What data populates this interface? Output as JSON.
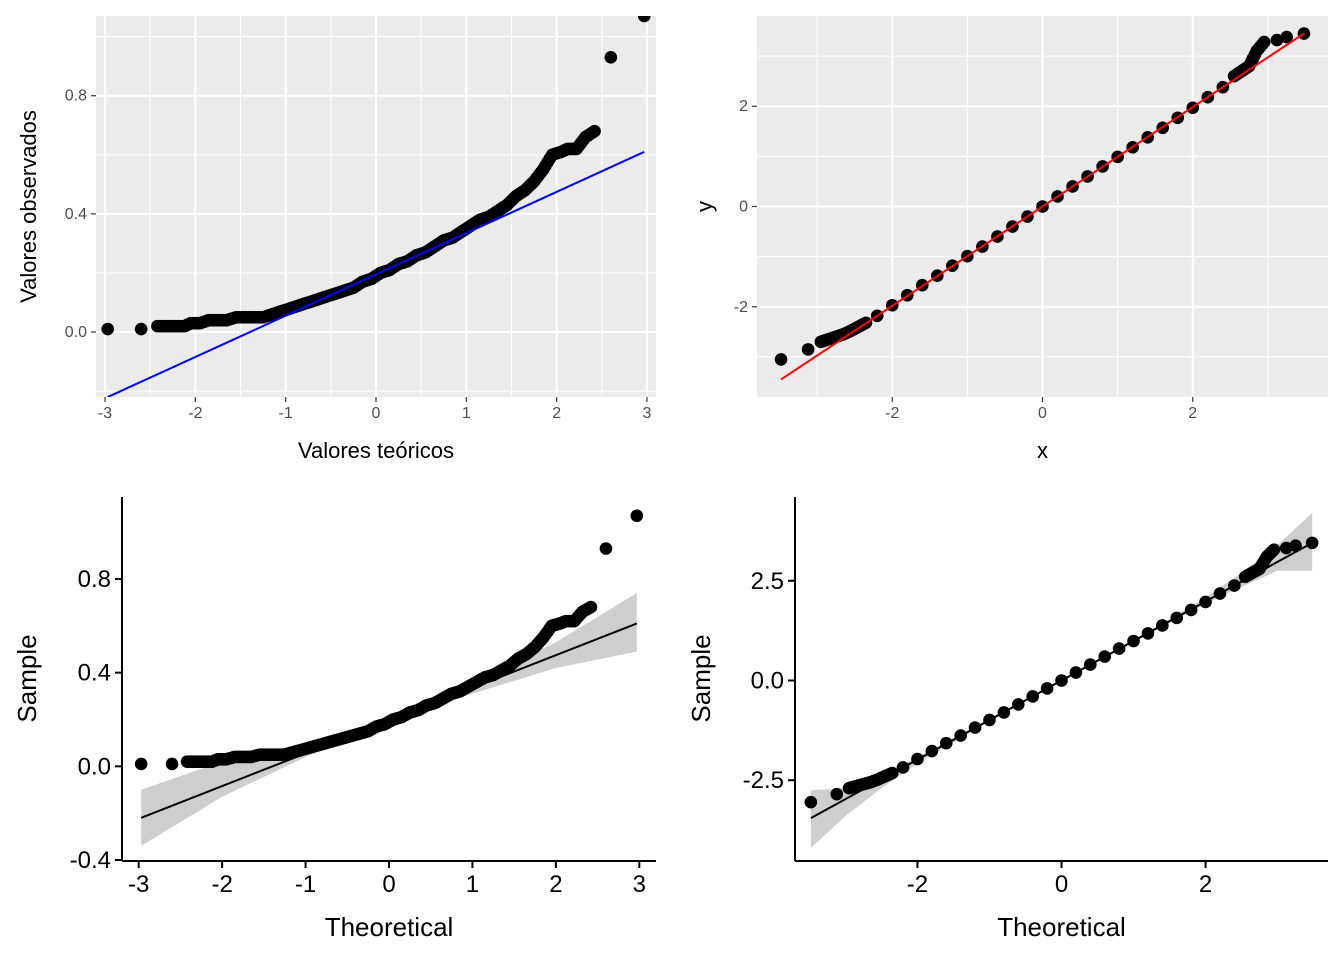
{
  "chart_data": [
    {
      "type": "scatter",
      "variant": "qq-plot",
      "theme": "ggplot2 grey",
      "xlabel": "Valores teóricos",
      "ylabel": "Valores observados",
      "xlim": [
        -3.1,
        3.1
      ],
      "ylim": [
        -0.22,
        1.07
      ],
      "xticks": [
        -3,
        -2,
        -1,
        0,
        1,
        2,
        3
      ],
      "xtick_labels": [
        "-3",
        "-2",
        "-1",
        "0",
        "1",
        "2",
        "3"
      ],
      "yticks": [
        0.0,
        0.4,
        0.8
      ],
      "ytick_labels": [
        "0.0",
        "0.4",
        "0.8"
      ],
      "grid": true,
      "series": [
        {
          "kind": "points",
          "color": "#000000",
          "x": [
            -2.97,
            -2.6,
            -2.42,
            -2.32,
            -2.22,
            -2.12,
            -2.05,
            -1.95,
            -1.85,
            -1.75,
            -1.65,
            -1.55,
            -1.45,
            -1.35,
            -1.25,
            -1.15,
            -1.05,
            -0.95,
            -0.85,
            -0.75,
            -0.65,
            -0.55,
            -0.45,
            -0.35,
            -0.25,
            -0.15,
            -0.05,
            0.05,
            0.15,
            0.25,
            0.35,
            0.45,
            0.55,
            0.65,
            0.75,
            0.85,
            0.95,
            1.05,
            1.15,
            1.25,
            1.35,
            1.45,
            1.55,
            1.65,
            1.75,
            1.85,
            1.95,
            2.05,
            2.12,
            2.22,
            2.32,
            2.42,
            2.6,
            2.97
          ],
          "y": [
            0.01,
            0.01,
            0.02,
            0.02,
            0.02,
            0.02,
            0.03,
            0.03,
            0.04,
            0.04,
            0.04,
            0.05,
            0.05,
            0.05,
            0.05,
            0.06,
            0.07,
            0.08,
            0.09,
            0.1,
            0.11,
            0.12,
            0.13,
            0.14,
            0.15,
            0.17,
            0.18,
            0.2,
            0.21,
            0.23,
            0.24,
            0.26,
            0.27,
            0.29,
            0.31,
            0.32,
            0.34,
            0.36,
            0.38,
            0.39,
            0.41,
            0.43,
            0.46,
            0.48,
            0.51,
            0.55,
            0.6,
            0.61,
            0.62,
            0.62,
            0.66,
            0.68,
            0.93,
            1.07
          ]
        },
        {
          "kind": "line",
          "color": "#0000ff",
          "x": [
            -2.97,
            2.97
          ],
          "y": [
            -0.22,
            0.61
          ]
        }
      ]
    },
    {
      "type": "scatter",
      "variant": "qq-plot",
      "theme": "ggplot2 grey",
      "xlabel": "x",
      "ylabel": "y",
      "xlim": [
        -3.8,
        3.8
      ],
      "ylim": [
        -3.8,
        3.8
      ],
      "xticks": [
        -2,
        0,
        2
      ],
      "xtick_labels": [
        "-2",
        "0",
        "2"
      ],
      "yticks": [
        -2,
        0,
        2
      ],
      "ytick_labels": [
        "-2",
        "0",
        "2"
      ],
      "grid": true,
      "series": [
        {
          "kind": "points",
          "color": "#000000",
          "x": [
            -3.48,
            -3.12,
            -2.95,
            -2.85,
            -2.75,
            -2.65,
            -2.55,
            -2.45,
            -2.35,
            -2.2,
            -2.0,
            -1.8,
            -1.6,
            -1.4,
            -1.2,
            -1.0,
            -0.8,
            -0.6,
            -0.4,
            -0.2,
            0.0,
            0.2,
            0.4,
            0.6,
            0.8,
            1.0,
            1.2,
            1.4,
            1.6,
            1.8,
            2.0,
            2.2,
            2.4,
            2.55,
            2.65,
            2.75,
            2.85,
            2.95,
            3.12,
            3.25,
            3.48
          ],
          "y": [
            -3.05,
            -2.85,
            -2.7,
            -2.65,
            -2.6,
            -2.55,
            -2.48,
            -2.4,
            -2.32,
            -2.18,
            -1.97,
            -1.77,
            -1.57,
            -1.38,
            -1.18,
            -0.99,
            -0.8,
            -0.6,
            -0.4,
            -0.2,
            0.0,
            0.2,
            0.4,
            0.6,
            0.8,
            0.99,
            1.18,
            1.38,
            1.57,
            1.77,
            1.97,
            2.18,
            2.38,
            2.6,
            2.7,
            2.8,
            3.1,
            3.28,
            3.32,
            3.38,
            3.45
          ]
        },
        {
          "kind": "line",
          "color": "#ff0000",
          "x": [
            -3.48,
            3.48
          ],
          "y": [
            -3.45,
            3.45
          ]
        }
      ]
    },
    {
      "type": "scatter",
      "variant": "qq-plot with confidence band",
      "theme": "ggpubr classic",
      "xlabel": "Theoretical",
      "ylabel": "Sample",
      "xlim": [
        -3.2,
        3.2
      ],
      "ylim": [
        -0.4,
        1.15
      ],
      "xticks": [
        -3,
        -2,
        -1,
        0,
        1,
        2,
        3
      ],
      "xtick_labels": [
        "-3",
        "-2",
        "-1",
        "0",
        "1",
        "2",
        "3"
      ],
      "yticks": [
        -0.4,
        0.0,
        0.4,
        0.8
      ],
      "ytick_labels": [
        "-0.4",
        "0.0",
        "0.4",
        "0.8"
      ],
      "grid": false,
      "series": [
        {
          "kind": "band",
          "color": "#bebebe",
          "x": [
            -2.97,
            -2.0,
            -1.0,
            0.0,
            1.0,
            2.0,
            2.97
          ],
          "lower": [
            -0.34,
            -0.13,
            0.04,
            0.19,
            0.31,
            0.42,
            0.49
          ],
          "upper": [
            -0.1,
            0.02,
            0.1,
            0.2,
            0.36,
            0.53,
            0.74
          ]
        },
        {
          "kind": "points",
          "color": "#000000",
          "x": [
            -2.97,
            -2.6,
            -2.42,
            -2.32,
            -2.22,
            -2.12,
            -2.05,
            -1.95,
            -1.85,
            -1.75,
            -1.65,
            -1.55,
            -1.45,
            -1.35,
            -1.25,
            -1.15,
            -1.05,
            -0.95,
            -0.85,
            -0.75,
            -0.65,
            -0.55,
            -0.45,
            -0.35,
            -0.25,
            -0.15,
            -0.05,
            0.05,
            0.15,
            0.25,
            0.35,
            0.45,
            0.55,
            0.65,
            0.75,
            0.85,
            0.95,
            1.05,
            1.15,
            1.25,
            1.35,
            1.45,
            1.55,
            1.65,
            1.75,
            1.85,
            1.95,
            2.05,
            2.12,
            2.22,
            2.32,
            2.42,
            2.6,
            2.97
          ],
          "y": [
            0.01,
            0.01,
            0.02,
            0.02,
            0.02,
            0.02,
            0.03,
            0.03,
            0.04,
            0.04,
            0.04,
            0.05,
            0.05,
            0.05,
            0.05,
            0.06,
            0.07,
            0.08,
            0.09,
            0.1,
            0.11,
            0.12,
            0.13,
            0.14,
            0.15,
            0.17,
            0.18,
            0.2,
            0.21,
            0.23,
            0.24,
            0.26,
            0.27,
            0.29,
            0.31,
            0.32,
            0.34,
            0.36,
            0.38,
            0.39,
            0.41,
            0.43,
            0.46,
            0.48,
            0.51,
            0.55,
            0.6,
            0.61,
            0.62,
            0.62,
            0.66,
            0.68,
            0.93,
            1.07
          ]
        },
        {
          "kind": "line",
          "color": "#000000",
          "x": [
            -2.97,
            2.97
          ],
          "y": [
            -0.22,
            0.61
          ]
        }
      ]
    },
    {
      "type": "scatter",
      "variant": "qq-plot with confidence band",
      "theme": "ggpubr classic",
      "xlabel": "Theoretical",
      "ylabel": "Sample",
      "xlim": [
        -3.7,
        3.7
      ],
      "ylim": [
        -4.5,
        4.6
      ],
      "xticks": [
        -2,
        0,
        2
      ],
      "xtick_labels": [
        "-2",
        "0",
        "2"
      ],
      "yticks": [
        -2.5,
        0.0,
        2.5
      ],
      "ytick_labels": [
        "-2.5",
        "0.0",
        "2.5"
      ],
      "grid": false,
      "series": [
        {
          "kind": "band",
          "color": "#bebebe",
          "x": [
            -3.48,
            -3.0,
            -2.5,
            -2.0,
            -1.0,
            0.0,
            1.0,
            2.0,
            2.5,
            3.0,
            3.48
          ],
          "lower": [
            -4.2,
            -3.4,
            -2.7,
            -2.08,
            -1.02,
            0.0,
            0.96,
            1.92,
            2.35,
            2.75,
            2.75
          ],
          "upper": [
            -2.75,
            -2.7,
            -2.35,
            -1.92,
            -0.96,
            0.0,
            1.02,
            2.08,
            2.7,
            3.4,
            4.2
          ]
        },
        {
          "kind": "points",
          "color": "#000000",
          "x": [
            -3.48,
            -3.12,
            -2.95,
            -2.85,
            -2.75,
            -2.65,
            -2.55,
            -2.45,
            -2.35,
            -2.2,
            -2.0,
            -1.8,
            -1.6,
            -1.4,
            -1.2,
            -1.0,
            -0.8,
            -0.6,
            -0.4,
            -0.2,
            0.0,
            0.2,
            0.4,
            0.6,
            0.8,
            1.0,
            1.2,
            1.4,
            1.6,
            1.8,
            2.0,
            2.2,
            2.4,
            2.55,
            2.65,
            2.75,
            2.85,
            2.95,
            3.12,
            3.25,
            3.48
          ],
          "y": [
            -3.05,
            -2.85,
            -2.7,
            -2.65,
            -2.6,
            -2.55,
            -2.48,
            -2.4,
            -2.32,
            -2.18,
            -1.97,
            -1.77,
            -1.57,
            -1.38,
            -1.18,
            -0.99,
            -0.8,
            -0.6,
            -0.4,
            -0.2,
            0.0,
            0.2,
            0.4,
            0.6,
            0.8,
            0.99,
            1.18,
            1.38,
            1.57,
            1.77,
            1.97,
            2.18,
            2.38,
            2.6,
            2.7,
            2.8,
            3.1,
            3.28,
            3.32,
            3.38,
            3.45
          ]
        },
        {
          "kind": "line",
          "color": "#000000",
          "x": [
            -3.48,
            3.48
          ],
          "y": [
            -3.45,
            3.45
          ]
        }
      ]
    }
  ]
}
